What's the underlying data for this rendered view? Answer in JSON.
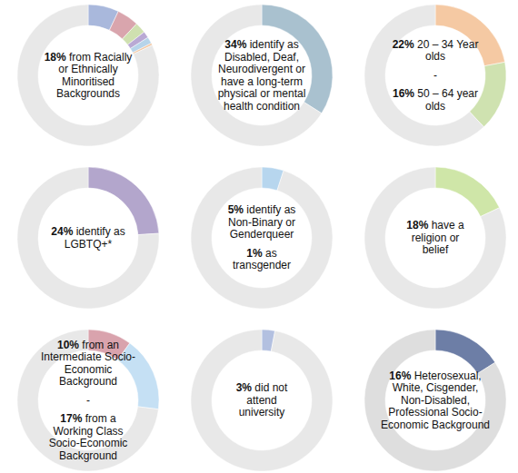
{
  "chart_data": [
    {
      "type": "donut",
      "values": [
        7,
        5,
        2.5,
        1.5,
        1.5,
        0.5,
        82
      ],
      "colors": [
        "#a9b8dc",
        "#d9a5ad",
        "#cfe0b0",
        "#b9a9d4",
        "#b7d4ea",
        "#f2c9a6",
        "#e8e8e8"
      ],
      "annotations": [
        [
          "18% from Racially",
          "or Ethnically",
          "Minoritised",
          "Backgrounds"
        ]
      ]
    },
    {
      "type": "donut",
      "values": [
        34,
        66
      ],
      "colors": [
        "#a9c1cf",
        "#e8e8e8"
      ],
      "annotations": [
        [
          "34% identify as",
          "Disabled, Deaf,",
          "Neurodivergent or",
          "have a long-term",
          "physical or mental",
          "health condition"
        ]
      ]
    },
    {
      "type": "donut",
      "values": [
        22,
        16,
        62
      ],
      "colors": [
        "#f5c9a3",
        "#cfe2b0",
        "#e8e8e8"
      ],
      "annotations": [
        [
          "22% 20 – 34 Year",
          "olds"
        ],
        [
          "-"
        ],
        [
          "16% 50 – 64 year",
          "olds"
        ]
      ]
    },
    {
      "type": "donut",
      "values": [
        24,
        76
      ],
      "colors": [
        "#b3a6cc",
        "#e8e8e8"
      ],
      "annotations": [
        [
          "24% identify as",
          "LGBTQ+*"
        ]
      ]
    },
    {
      "type": "donut",
      "values": [
        5,
        95
      ],
      "colors": [
        "#b7d6ee",
        "#e8e8e8"
      ],
      "annotations": [
        [
          "5% identify as",
          "Non-Binary or",
          "Genderqueer"
        ],
        [
          "1% as",
          "transgender"
        ]
      ]
    },
    {
      "type": "donut",
      "values": [
        18,
        82
      ],
      "colors": [
        "#cfe6a8",
        "#e8e8e8"
      ],
      "annotations": [
        [
          "18% have a",
          "religion or",
          "belief"
        ]
      ]
    },
    {
      "type": "donut",
      "values": [
        10,
        17,
        73
      ],
      "colors": [
        "#d9a3ad",
        "#c5e0f4",
        "#e8e8e8"
      ],
      "annotations": [
        [
          "10% from an",
          "Intermediate Socio-",
          "Economic",
          "Background"
        ],
        [
          "-"
        ],
        [
          "17% from a",
          "Working Class",
          "Socio-Economic",
          "Background"
        ]
      ]
    },
    {
      "type": "donut",
      "values": [
        3,
        97
      ],
      "colors": [
        "#b3c0e0",
        "#e8e8e8"
      ],
      "annotations": [
        [
          "3% did not",
          "attend",
          "university"
        ]
      ]
    },
    {
      "type": "donut",
      "values": [
        16,
        84
      ],
      "colors": [
        "#6d7ea6",
        "#dedede"
      ],
      "annotations": [
        [
          "16% Heterosexual,",
          "White, Cisgender,",
          "Non-Disabled,",
          "Professional Socio-",
          "Economic Background"
        ]
      ]
    }
  ]
}
